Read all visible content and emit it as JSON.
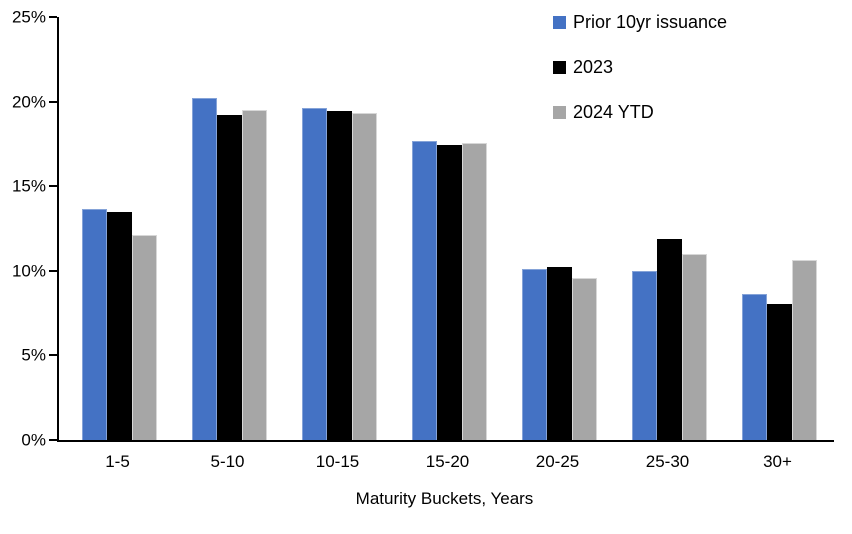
{
  "chart_data": {
    "type": "bar",
    "title": "",
    "categories": [
      "1-5",
      "5-10",
      "10-15",
      "15-20",
      "20-25",
      "25-30",
      "30+"
    ],
    "series": [
      {
        "name": "Prior 10yr issuance",
        "color": "#4472C4",
        "values": [
          13.65,
          20.2,
          19.6,
          17.65,
          10.1,
          10.0,
          8.6
        ]
      },
      {
        "name": "2023",
        "color": "#000000",
        "values": [
          13.5,
          19.2,
          19.45,
          17.45,
          10.2,
          11.85,
          8.05
        ]
      },
      {
        "name": "2024 YTD",
        "color": "#A6A6A6",
        "values": [
          12.1,
          19.5,
          19.35,
          17.55,
          9.55,
          11.0,
          10.65
        ]
      }
    ],
    "xlabel": "Maturity Buckets, Years",
    "ylabel": "",
    "ylim": [
      0,
      25
    ],
    "ytick_step": 5,
    "ytick_labels": [
      "0%",
      "5%",
      "10%",
      "15%",
      "20%",
      "25%"
    ],
    "grid": false,
    "legend_position": "top-right",
    "axis_color": "#000000"
  }
}
